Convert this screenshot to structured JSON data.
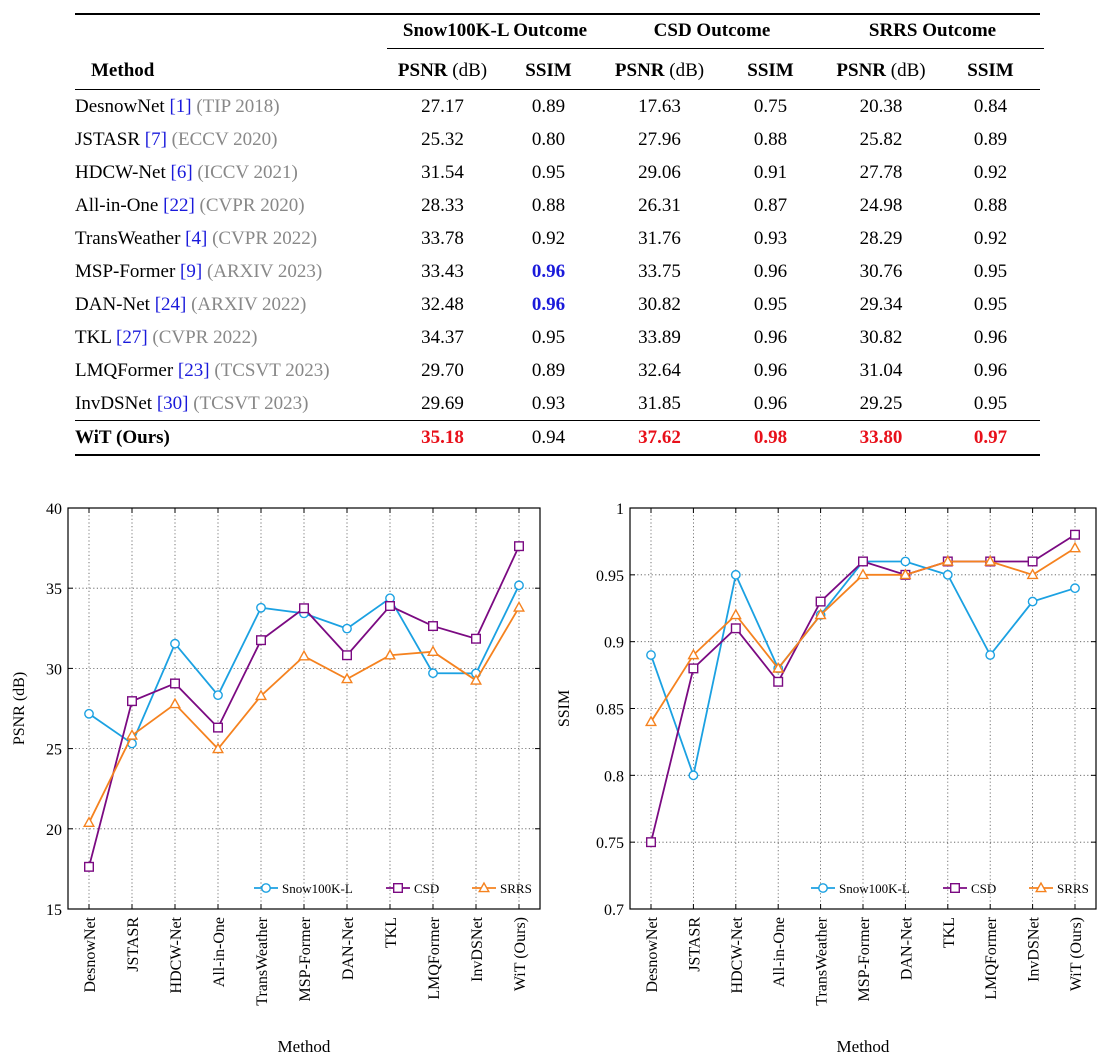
{
  "table": {
    "method_header": "Method",
    "groups": [
      "Snow100K-L Outcome",
      "CSD Outcome",
      "SRRS Outcome"
    ],
    "psnr_label": "PSNR",
    "psnr_unit": "(dB)",
    "ssim_label": "SSIM",
    "rows": [
      {
        "name": "DesnowNet",
        "cite": "1",
        "venue": "(TIP 2018)",
        "values": [
          "27.17",
          "0.89",
          "17.63",
          "0.75",
          "20.38",
          "0.84"
        ]
      },
      {
        "name": "JSTASR",
        "cite": "7",
        "venue": "(ECCV 2020)",
        "values": [
          "25.32",
          "0.80",
          "27.96",
          "0.88",
          "25.82",
          "0.89"
        ]
      },
      {
        "name": "HDCW-Net",
        "cite": "6",
        "venue": "(ICCV 2021)",
        "values": [
          "31.54",
          "0.95",
          "29.06",
          "0.91",
          "27.78",
          "0.92"
        ]
      },
      {
        "name": "All-in-One",
        "cite": "22",
        "venue": "(CVPR 2020)",
        "values": [
          "28.33",
          "0.88",
          "26.31",
          "0.87",
          "24.98",
          "0.88"
        ]
      },
      {
        "name": "TransWeather",
        "cite": "4",
        "venue": "(CVPR 2022)",
        "values": [
          "33.78",
          "0.92",
          "31.76",
          "0.93",
          "28.29",
          "0.92"
        ]
      },
      {
        "name": "MSP-Former",
        "cite": "9",
        "venue": "(ARXIV 2023)",
        "values": [
          "33.43",
          "0.96",
          "33.75",
          "0.96",
          "30.76",
          "0.95"
        ]
      },
      {
        "name": "DAN-Net",
        "cite": "24",
        "venue": "(ARXIV 2022)",
        "values": [
          "32.48",
          "0.96",
          "30.82",
          "0.95",
          "29.34",
          "0.95"
        ]
      },
      {
        "name": "TKL",
        "cite": "27",
        "venue": "(CVPR 2022)",
        "values": [
          "34.37",
          "0.95",
          "33.89",
          "0.96",
          "30.82",
          "0.96"
        ]
      },
      {
        "name": "LMQFormer",
        "cite": "23",
        "venue": "(TCSVT 2023)",
        "values": [
          "29.70",
          "0.89",
          "32.64",
          "0.96",
          "31.04",
          "0.96"
        ]
      },
      {
        "name": "InvDSNet",
        "cite": "30",
        "venue": "(TCSVT 2023)",
        "values": [
          "29.69",
          "0.93",
          "31.85",
          "0.96",
          "29.25",
          "0.95"
        ]
      }
    ],
    "ours": {
      "name": "WiT (Ours)",
      "values": [
        "35.18",
        "0.94",
        "37.62",
        "0.98",
        "33.80",
        "0.97"
      ]
    }
  },
  "colors": {
    "snow100k": "#1ba1e2",
    "csd": "#7b0a82",
    "srrs": "#f5821f",
    "best": "#e8101a",
    "second": "#1a1adb",
    "venue": "#888888"
  },
  "chart_data": [
    {
      "type": "line",
      "xlabel": "Method",
      "ylabel": "PSNR (dB)",
      "ylim": [
        15,
        40
      ],
      "yticks": [
        "15",
        "20",
        "25",
        "30",
        "35",
        "40"
      ],
      "grid": true,
      "legend_position": "bottom-right",
      "categories": [
        "DesnowNet",
        "JSTASR",
        "HDCW-Net",
        "All-in-One",
        "TransWeather",
        "MSP-Former",
        "DAN-Net",
        "TKL",
        "LMQFormer",
        "InvDSNet",
        "WiT (Ours)"
      ],
      "series": [
        {
          "name": "Snow100K-L",
          "color": "#1ba1e2",
          "marker": "circle",
          "values": [
            27.17,
            25.32,
            31.54,
            28.33,
            33.78,
            33.43,
            32.48,
            34.37,
            29.7,
            29.69,
            35.18
          ]
        },
        {
          "name": "CSD",
          "color": "#7b0a82",
          "marker": "square",
          "values": [
            17.63,
            27.96,
            29.06,
            26.31,
            31.76,
            33.75,
            30.82,
            33.89,
            32.64,
            31.85,
            37.62
          ]
        },
        {
          "name": "SRRS",
          "color": "#f5821f",
          "marker": "triangle",
          "values": [
            20.38,
            25.82,
            27.78,
            24.98,
            28.29,
            30.76,
            29.34,
            30.82,
            31.04,
            29.25,
            33.8
          ]
        }
      ]
    },
    {
      "type": "line",
      "xlabel": "Method",
      "ylabel": "SSIM",
      "ylim": [
        0.7,
        1.0
      ],
      "yticks": [
        "0.7",
        "0.75",
        "0.8",
        "0.85",
        "0.9",
        "0.95",
        "1"
      ],
      "grid": true,
      "legend_position": "bottom-right",
      "categories": [
        "DesnowNet",
        "JSTASR",
        "HDCW-Net",
        "All-in-One",
        "TransWeather",
        "MSP-Former",
        "DAN-Net",
        "TKL",
        "LMQFormer",
        "InvDSNet",
        "WiT (Ours)"
      ],
      "series": [
        {
          "name": "Snow100K-L",
          "color": "#1ba1e2",
          "marker": "circle",
          "values": [
            0.89,
            0.8,
            0.95,
            0.88,
            0.92,
            0.96,
            0.96,
            0.95,
            0.89,
            0.93,
            0.94
          ]
        },
        {
          "name": "CSD",
          "color": "#7b0a82",
          "marker": "square",
          "values": [
            0.75,
            0.88,
            0.91,
            0.87,
            0.93,
            0.96,
            0.95,
            0.96,
            0.96,
            0.96,
            0.98
          ]
        },
        {
          "name": "SRRS",
          "color": "#f5821f",
          "marker": "triangle",
          "values": [
            0.84,
            0.89,
            0.92,
            0.88,
            0.92,
            0.95,
            0.95,
            0.96,
            0.96,
            0.95,
            0.97
          ]
        }
      ]
    }
  ]
}
